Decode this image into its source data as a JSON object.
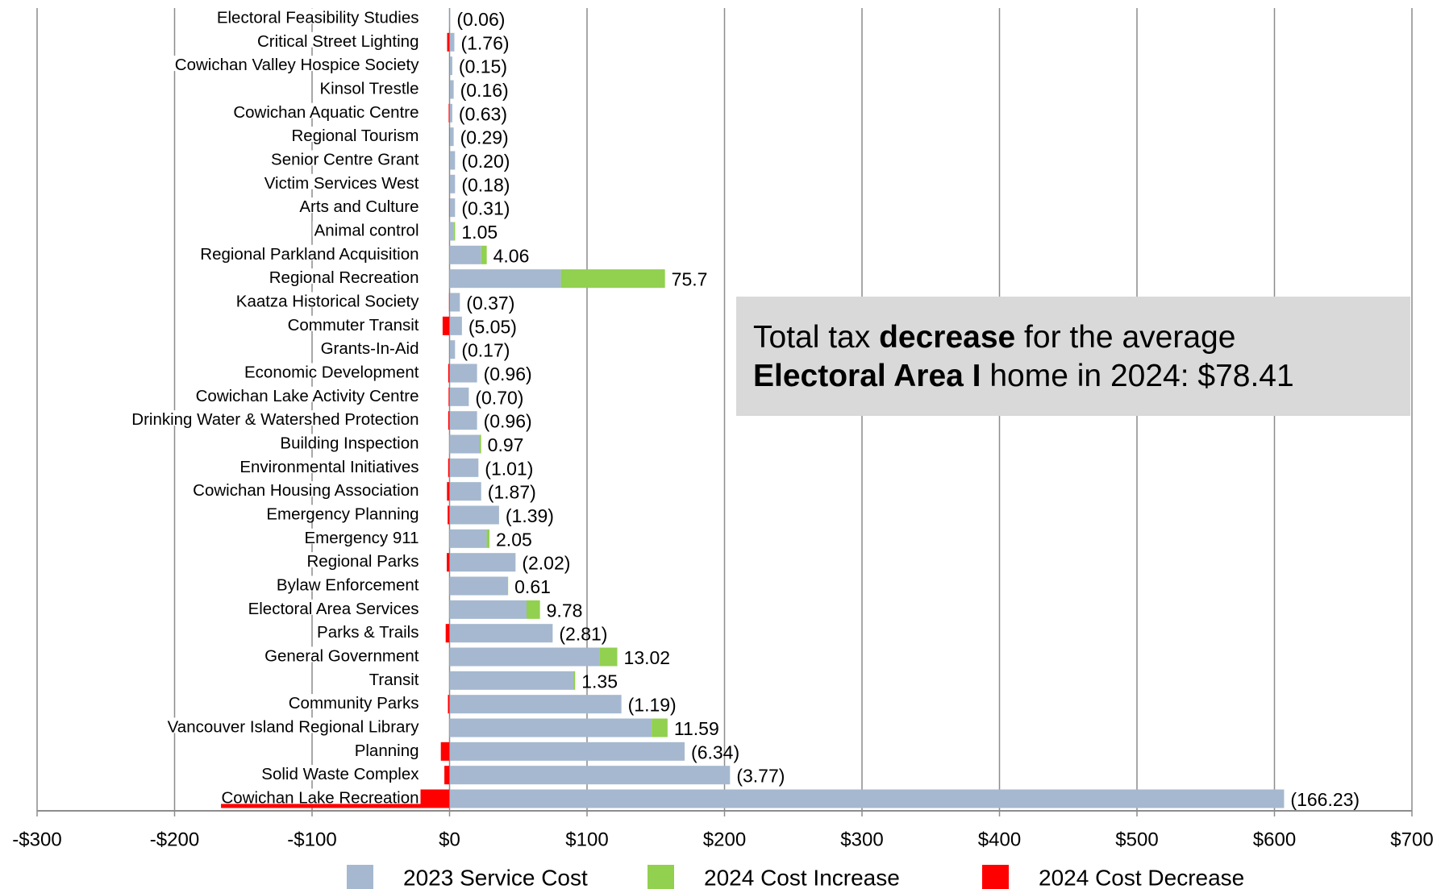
{
  "chart_data": {
    "type": "stacked-barh",
    "categories": [
      "Electoral Feasibility Studies",
      "Critical Street Lighting",
      "Cowichan Valley Hospice Society",
      "Kinsol Trestle",
      "Cowichan Aquatic Centre",
      "Regional Tourism",
      "Senior Centre Grant",
      "Victim Services West",
      "Arts and Culture",
      "Animal control",
      "Regional Parkland Acquisition",
      "Regional Recreation",
      "Kaatza Historical Society",
      "Commuter Transit",
      "Grants-In-Aid",
      "Economic Development",
      "Cowichan Lake Activity Centre",
      "Drinking Water & Watershed Protection",
      "Building Inspection",
      "Environmental Initiatives",
      "Cowichan Housing Association",
      "Emergency Planning",
      "Emergency 911",
      "Regional Parks",
      "Bylaw Enforcement",
      "Electoral Area Services",
      "Parks & Trails",
      "General Government",
      "Transit",
      "Community Parks",
      "Vancouver Island Regional Library",
      "Planning",
      "Solid Waste Complex",
      "Cowichan Lake Recreation"
    ],
    "series": [
      {
        "name": "2023 Service Cost",
        "color": "#a5b8cf",
        "values": [
          0.5,
          3.5,
          2,
          3,
          2,
          3,
          4,
          4,
          4,
          3,
          23,
          81,
          7.5,
          9,
          4,
          20,
          14,
          20,
          22,
          21,
          23,
          36,
          27,
          48,
          42,
          56,
          75,
          109,
          90,
          125,
          147,
          171,
          204,
          607
        ]
      },
      {
        "name": "2024 Cost Increase",
        "color": "#92d050",
        "values": [
          null,
          null,
          null,
          null,
          null,
          null,
          null,
          null,
          null,
          1.05,
          4.06,
          75.7,
          null,
          null,
          null,
          null,
          null,
          null,
          0.97,
          null,
          null,
          null,
          2.05,
          null,
          0.61,
          9.78,
          null,
          13.02,
          1.35,
          null,
          11.59,
          null,
          null,
          null
        ]
      },
      {
        "name": "2024 Cost Decrease",
        "color": "#ff0000",
        "values": [
          -0.06,
          -1.76,
          -0.15,
          -0.16,
          -0.63,
          -0.29,
          -0.2,
          -0.18,
          -0.31,
          null,
          null,
          null,
          -0.37,
          -5.05,
          -0.17,
          -0.96,
          -0.7,
          -0.96,
          null,
          -1.01,
          -1.87,
          -1.39,
          null,
          -2.02,
          null,
          null,
          -2.81,
          null,
          null,
          -1.19,
          null,
          -6.34,
          -3.77,
          -166.23
        ],
        "value_labels": [
          "(0.06)",
          "(1.76)",
          "(0.15)",
          "(0.16)",
          "(0.63)",
          "(0.29)",
          "(0.20)",
          "(0.18)",
          "(0.31)",
          null,
          null,
          null,
          "(0.37)",
          "(5.05)",
          "(0.17)",
          "(0.96)",
          "(0.70)",
          "(0.96)",
          null,
          "(1.01)",
          "(1.87)",
          "(1.39)",
          null,
          "(2.02)",
          null,
          null,
          "(2.81)",
          null,
          null,
          "(1.19)",
          null,
          "(6.34)",
          "(3.77)",
          "(166.23)"
        ]
      }
    ],
    "xlim": [
      -300,
      700
    ],
    "xticks": [
      {
        "value": -300,
        "label": "-$300"
      },
      {
        "value": -200,
        "label": "-$200"
      },
      {
        "value": -100,
        "label": "-$100"
      },
      {
        "value": 0,
        "label": "$0"
      },
      {
        "value": 100,
        "label": "$100"
      },
      {
        "value": 200,
        "label": "$200"
      },
      {
        "value": 300,
        "label": "$300"
      },
      {
        "value": 400,
        "label": "$400"
      },
      {
        "value": 500,
        "label": "$500"
      },
      {
        "value": 600,
        "label": "$600"
      },
      {
        "value": 700,
        "label": "$700"
      }
    ],
    "grid": true,
    "legend": "bottom",
    "annotation": {
      "lines": [
        [
          {
            "text": "Total tax "
          },
          {
            "text": "decrease",
            "bold": true
          },
          {
            "text": " for the average"
          }
        ],
        [
          {
            "text": "Electoral Area I",
            "bold": true
          },
          {
            "text": " home in 2024: $78.41"
          }
        ]
      ]
    }
  }
}
